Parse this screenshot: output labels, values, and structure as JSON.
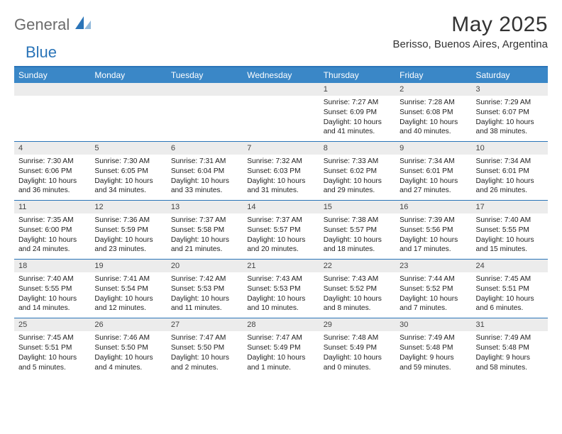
{
  "logo": {
    "text1": "General",
    "text2": "Blue"
  },
  "title": "May 2025",
  "location": "Berisso, Buenos Aires, Argentina",
  "colors": {
    "header_bg": "#3a87c7",
    "rule": "#2a74b8",
    "daynum_bg": "#ececec",
    "text": "#222222",
    "logo_gray": "#6b6b6b",
    "logo_blue": "#2a74b8"
  },
  "fonts": {
    "title_size": 30,
    "location_size": 15,
    "dayhead_size": 12,
    "body_size": 10.2
  },
  "weekdays": [
    "Sunday",
    "Monday",
    "Tuesday",
    "Wednesday",
    "Thursday",
    "Friday",
    "Saturday"
  ],
  "weeks": [
    [
      null,
      null,
      null,
      null,
      {
        "n": "1",
        "sunrise": "Sunrise: 7:27 AM",
        "sunset": "Sunset: 6:09 PM",
        "daylight": "Daylight: 10 hours and 41 minutes."
      },
      {
        "n": "2",
        "sunrise": "Sunrise: 7:28 AM",
        "sunset": "Sunset: 6:08 PM",
        "daylight": "Daylight: 10 hours and 40 minutes."
      },
      {
        "n": "3",
        "sunrise": "Sunrise: 7:29 AM",
        "sunset": "Sunset: 6:07 PM",
        "daylight": "Daylight: 10 hours and 38 minutes."
      }
    ],
    [
      {
        "n": "4",
        "sunrise": "Sunrise: 7:30 AM",
        "sunset": "Sunset: 6:06 PM",
        "daylight": "Daylight: 10 hours and 36 minutes."
      },
      {
        "n": "5",
        "sunrise": "Sunrise: 7:30 AM",
        "sunset": "Sunset: 6:05 PM",
        "daylight": "Daylight: 10 hours and 34 minutes."
      },
      {
        "n": "6",
        "sunrise": "Sunrise: 7:31 AM",
        "sunset": "Sunset: 6:04 PM",
        "daylight": "Daylight: 10 hours and 33 minutes."
      },
      {
        "n": "7",
        "sunrise": "Sunrise: 7:32 AM",
        "sunset": "Sunset: 6:03 PM",
        "daylight": "Daylight: 10 hours and 31 minutes."
      },
      {
        "n": "8",
        "sunrise": "Sunrise: 7:33 AM",
        "sunset": "Sunset: 6:02 PM",
        "daylight": "Daylight: 10 hours and 29 minutes."
      },
      {
        "n": "9",
        "sunrise": "Sunrise: 7:34 AM",
        "sunset": "Sunset: 6:01 PM",
        "daylight": "Daylight: 10 hours and 27 minutes."
      },
      {
        "n": "10",
        "sunrise": "Sunrise: 7:34 AM",
        "sunset": "Sunset: 6:01 PM",
        "daylight": "Daylight: 10 hours and 26 minutes."
      }
    ],
    [
      {
        "n": "11",
        "sunrise": "Sunrise: 7:35 AM",
        "sunset": "Sunset: 6:00 PM",
        "daylight": "Daylight: 10 hours and 24 minutes."
      },
      {
        "n": "12",
        "sunrise": "Sunrise: 7:36 AM",
        "sunset": "Sunset: 5:59 PM",
        "daylight": "Daylight: 10 hours and 23 minutes."
      },
      {
        "n": "13",
        "sunrise": "Sunrise: 7:37 AM",
        "sunset": "Sunset: 5:58 PM",
        "daylight": "Daylight: 10 hours and 21 minutes."
      },
      {
        "n": "14",
        "sunrise": "Sunrise: 7:37 AM",
        "sunset": "Sunset: 5:57 PM",
        "daylight": "Daylight: 10 hours and 20 minutes."
      },
      {
        "n": "15",
        "sunrise": "Sunrise: 7:38 AM",
        "sunset": "Sunset: 5:57 PM",
        "daylight": "Daylight: 10 hours and 18 minutes."
      },
      {
        "n": "16",
        "sunrise": "Sunrise: 7:39 AM",
        "sunset": "Sunset: 5:56 PM",
        "daylight": "Daylight: 10 hours and 17 minutes."
      },
      {
        "n": "17",
        "sunrise": "Sunrise: 7:40 AM",
        "sunset": "Sunset: 5:55 PM",
        "daylight": "Daylight: 10 hours and 15 minutes."
      }
    ],
    [
      {
        "n": "18",
        "sunrise": "Sunrise: 7:40 AM",
        "sunset": "Sunset: 5:55 PM",
        "daylight": "Daylight: 10 hours and 14 minutes."
      },
      {
        "n": "19",
        "sunrise": "Sunrise: 7:41 AM",
        "sunset": "Sunset: 5:54 PM",
        "daylight": "Daylight: 10 hours and 12 minutes."
      },
      {
        "n": "20",
        "sunrise": "Sunrise: 7:42 AM",
        "sunset": "Sunset: 5:53 PM",
        "daylight": "Daylight: 10 hours and 11 minutes."
      },
      {
        "n": "21",
        "sunrise": "Sunrise: 7:43 AM",
        "sunset": "Sunset: 5:53 PM",
        "daylight": "Daylight: 10 hours and 10 minutes."
      },
      {
        "n": "22",
        "sunrise": "Sunrise: 7:43 AM",
        "sunset": "Sunset: 5:52 PM",
        "daylight": "Daylight: 10 hours and 8 minutes."
      },
      {
        "n": "23",
        "sunrise": "Sunrise: 7:44 AM",
        "sunset": "Sunset: 5:52 PM",
        "daylight": "Daylight: 10 hours and 7 minutes."
      },
      {
        "n": "24",
        "sunrise": "Sunrise: 7:45 AM",
        "sunset": "Sunset: 5:51 PM",
        "daylight": "Daylight: 10 hours and 6 minutes."
      }
    ],
    [
      {
        "n": "25",
        "sunrise": "Sunrise: 7:45 AM",
        "sunset": "Sunset: 5:51 PM",
        "daylight": "Daylight: 10 hours and 5 minutes."
      },
      {
        "n": "26",
        "sunrise": "Sunrise: 7:46 AM",
        "sunset": "Sunset: 5:50 PM",
        "daylight": "Daylight: 10 hours and 4 minutes."
      },
      {
        "n": "27",
        "sunrise": "Sunrise: 7:47 AM",
        "sunset": "Sunset: 5:50 PM",
        "daylight": "Daylight: 10 hours and 2 minutes."
      },
      {
        "n": "28",
        "sunrise": "Sunrise: 7:47 AM",
        "sunset": "Sunset: 5:49 PM",
        "daylight": "Daylight: 10 hours and 1 minute."
      },
      {
        "n": "29",
        "sunrise": "Sunrise: 7:48 AM",
        "sunset": "Sunset: 5:49 PM",
        "daylight": "Daylight: 10 hours and 0 minutes."
      },
      {
        "n": "30",
        "sunrise": "Sunrise: 7:49 AM",
        "sunset": "Sunset: 5:48 PM",
        "daylight": "Daylight: 9 hours and 59 minutes."
      },
      {
        "n": "31",
        "sunrise": "Sunrise: 7:49 AM",
        "sunset": "Sunset: 5:48 PM",
        "daylight": "Daylight: 9 hours and 58 minutes."
      }
    ]
  ]
}
